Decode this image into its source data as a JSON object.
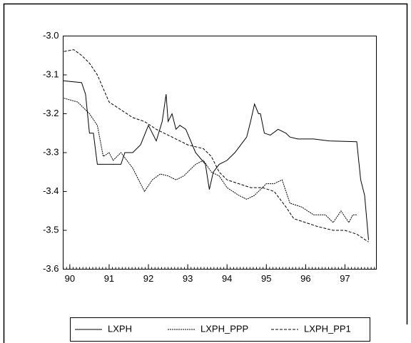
{
  "chart_data": {
    "type": "line",
    "xlim": [
      89.83,
      97.8
    ],
    "xticks": [
      90,
      91,
      92,
      93,
      94,
      95,
      96,
      97
    ],
    "ylim": [
      -3.6,
      -3.0
    ],
    "yticks": [
      {
        "value": -3.0,
        "label": "-3.0"
      },
      -3.1,
      -3.2,
      -3.3,
      -3.4,
      -3.5,
      -3.6
    ],
    "series": [
      {
        "name": "LXPH",
        "color": "#000000",
        "dash": "solid",
        "x": [
          89.83,
          90.3,
          90.4,
          90.5,
          90.6,
          90.7,
          91.3,
          91.4,
          91.6,
          91.8,
          92.0,
          92.2,
          92.35,
          92.45,
          92.5,
          92.6,
          92.7,
          92.8,
          92.95,
          93.2,
          93.45,
          93.55,
          93.65,
          93.8,
          94.0,
          94.2,
          94.35,
          94.5,
          94.6,
          94.7,
          94.8,
          94.85,
          94.95,
          95.1,
          95.3,
          95.5,
          95.6,
          95.8,
          96.2,
          96.6,
          97.3,
          97.4,
          97.5,
          97.6
        ],
        "values": [
          -3.115,
          -3.12,
          -3.15,
          -3.25,
          -3.25,
          -3.33,
          -3.33,
          -3.3,
          -3.3,
          -3.28,
          -3.23,
          -3.27,
          -3.22,
          -3.15,
          -3.22,
          -3.2,
          -3.24,
          -3.23,
          -3.24,
          -3.3,
          -3.33,
          -3.395,
          -3.35,
          -3.33,
          -3.32,
          -3.3,
          -3.28,
          -3.26,
          -3.22,
          -3.175,
          -3.2,
          -3.2,
          -3.25,
          -3.255,
          -3.24,
          -3.25,
          -3.26,
          -3.265,
          -3.265,
          -3.27,
          -3.272,
          -3.37,
          -3.41,
          -3.525
        ]
      },
      {
        "name": "LXPH_PPP",
        "color": "#000000",
        "dash": "dotted",
        "x": [
          89.85,
          90.2,
          90.5,
          90.7,
          90.85,
          91.0,
          91.1,
          91.3,
          91.6,
          91.8,
          91.9,
          92.1,
          92.3,
          92.5,
          92.7,
          92.9,
          93.2,
          93.4,
          93.6,
          93.8,
          94.0,
          94.3,
          94.5,
          94.7,
          95.0,
          95.2,
          95.4,
          95.6,
          95.9,
          96.2,
          96.5,
          96.7,
          96.9,
          97.1,
          97.2,
          97.3
        ],
        "values": [
          -3.16,
          -3.17,
          -3.2,
          -3.23,
          -3.31,
          -3.3,
          -3.32,
          -3.3,
          -3.34,
          -3.38,
          -3.4,
          -3.37,
          -3.355,
          -3.36,
          -3.37,
          -3.36,
          -3.33,
          -3.32,
          -3.35,
          -3.36,
          -3.39,
          -3.41,
          -3.42,
          -3.41,
          -3.38,
          -3.38,
          -3.37,
          -3.43,
          -3.44,
          -3.46,
          -3.46,
          -3.48,
          -3.45,
          -3.48,
          -3.46,
          -3.46
        ]
      },
      {
        "name": "LXPH_PP1",
        "color": "#000000",
        "dash": "dashed",
        "x": [
          89.85,
          90.1,
          90.3,
          90.5,
          90.7,
          91.0,
          91.3,
          91.6,
          91.9,
          92.2,
          92.6,
          93.0,
          93.4,
          93.6,
          93.8,
          94.0,
          94.3,
          94.6,
          94.9,
          95.2,
          95.5,
          95.7,
          96.0,
          96.3,
          96.7,
          97.0,
          97.3,
          97.6
        ],
        "values": [
          -3.04,
          -3.035,
          -3.05,
          -3.07,
          -3.1,
          -3.17,
          -3.19,
          -3.21,
          -3.22,
          -3.24,
          -3.26,
          -3.28,
          -3.29,
          -3.31,
          -3.35,
          -3.37,
          -3.38,
          -3.39,
          -3.39,
          -3.4,
          -3.44,
          -3.47,
          -3.48,
          -3.49,
          -3.5,
          -3.5,
          -3.51,
          -3.53
        ]
      }
    ]
  }
}
